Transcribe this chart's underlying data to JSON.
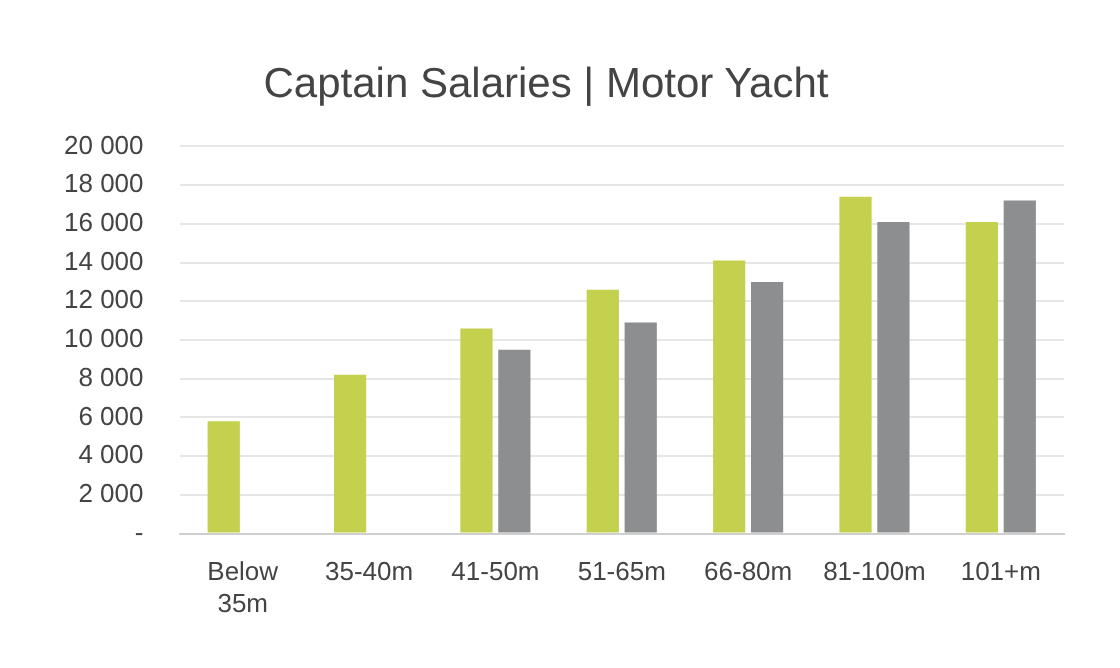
{
  "chart_data": {
    "type": "bar",
    "title": "Captain Salaries | Motor Yacht",
    "categories": [
      "Below 35m",
      "35-40m",
      "41-50m",
      "51-65m",
      "66-80m",
      "81-100m",
      "101+m"
    ],
    "series": [
      {
        "color": "#c3d14f",
        "values": [
          5800,
          8200,
          10600,
          12600,
          14100,
          17400,
          16100
        ]
      },
      {
        "color": "#8c8e8f",
        "values": [
          null,
          null,
          9500,
          10900,
          13000,
          16100,
          17200
        ]
      }
    ],
    "ylim": [
      0,
      20000
    ],
    "yticks": [
      {
        "value": 0,
        "label": "-"
      },
      {
        "value": 2000,
        "label": "2 000"
      },
      {
        "value": 4000,
        "label": "4 000"
      },
      {
        "value": 6000,
        "label": "6 000"
      },
      {
        "value": 8000,
        "label": "8 000"
      },
      {
        "value": 10000,
        "label": "10 000"
      },
      {
        "value": 12000,
        "label": "12 000"
      },
      {
        "value": 14000,
        "label": "14 000"
      },
      {
        "value": 16000,
        "label": "16 000"
      },
      {
        "value": 18000,
        "label": "18 000"
      },
      {
        "value": 20000,
        "label": "20 000"
      }
    ],
    "grid": "y",
    "legend": false
  }
}
